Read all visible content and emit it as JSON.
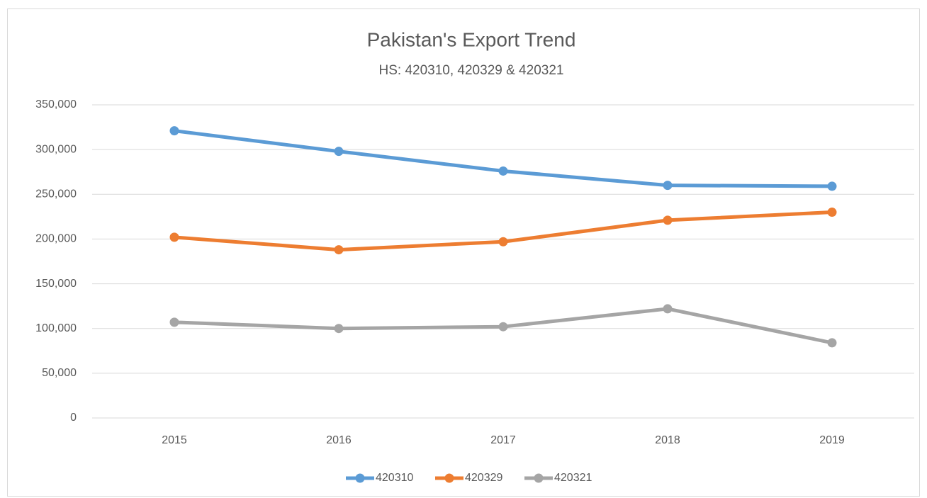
{
  "chart_data": {
    "type": "line",
    "title": "Pakistan's Export Trend",
    "subtitle": "HS: 420310, 420329 & 420321",
    "categories": [
      "2015",
      "2016",
      "2017",
      "2018",
      "2019"
    ],
    "series": [
      {
        "name": "420310",
        "color": "#5b9bd5",
        "values": [
          321000,
          298000,
          276000,
          260000,
          259000
        ]
      },
      {
        "name": "420329",
        "color": "#ed7d31",
        "values": [
          202000,
          188000,
          197000,
          221000,
          230000
        ]
      },
      {
        "name": "420321",
        "color": "#a5a5a5",
        "values": [
          107000,
          100000,
          102000,
          122000,
          84000
        ]
      }
    ],
    "ylim": [
      0,
      350000
    ],
    "yticks": [
      0,
      {
        "value": 50000,
        "label": "50,000"
      },
      {
        "value": 100000,
        "label": "100,000"
      },
      {
        "value": 150000,
        "label": "150,000"
      },
      {
        "value": 200000,
        "label": "200,000"
      },
      {
        "value": 250000,
        "label": "250,000"
      },
      {
        "value": 300000,
        "label": "300,000"
      },
      {
        "value": 350000,
        "label": "350,000"
      }
    ],
    "grid": true,
    "legend": "bottom"
  }
}
